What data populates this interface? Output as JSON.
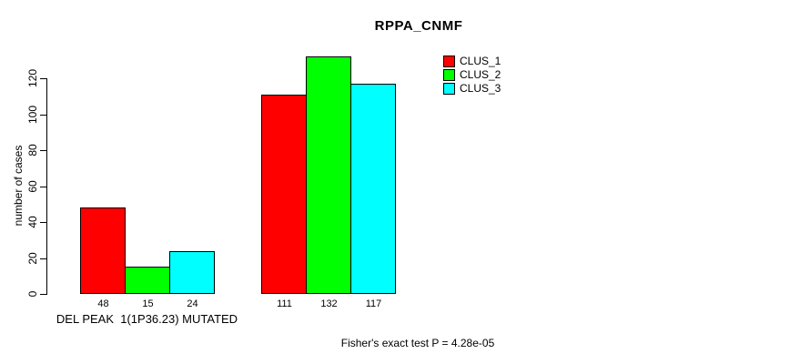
{
  "chart_data": {
    "type": "bar",
    "title": "RPPA_CNMF",
    "ylabel": "number of cases",
    "xlabel": "",
    "categories": [
      "DEL PEAK  1(1P36.23) MUTATED",
      ""
    ],
    "series": [
      {
        "name": "CLUS_1",
        "color": "#ff0000",
        "values": [
          48,
          111
        ]
      },
      {
        "name": "CLUS_2",
        "color": "#00ff00",
        "values": [
          15,
          132
        ]
      },
      {
        "name": "CLUS_3",
        "color": "#00ffff",
        "values": [
          24,
          117
        ]
      }
    ],
    "bar_border_color": "#000000",
    "bar_value_labels_shown": true,
    "yticks": [
      0,
      20,
      40,
      60,
      80,
      100,
      120
    ],
    "ylim": [
      0,
      133
    ],
    "grid": false,
    "legend_position": "inside-top-right",
    "annotation": "Fisher's exact test P = 4.28e-05"
  }
}
